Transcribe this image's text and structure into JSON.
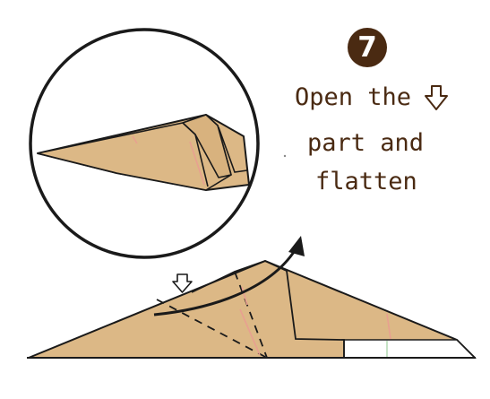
{
  "step": {
    "number": "7",
    "badge_color": "#4a2a12"
  },
  "instruction": {
    "line1": "Open the",
    "line2": "part and",
    "line3": "flatten",
    "icon": "down-arrow-icon",
    "text_color": "#4a2a12"
  },
  "colors": {
    "paper": "#dcb886",
    "paper_edge": "#1a1a1a",
    "crease_pink": "#e8a090",
    "white_strip": "#ffffff"
  }
}
